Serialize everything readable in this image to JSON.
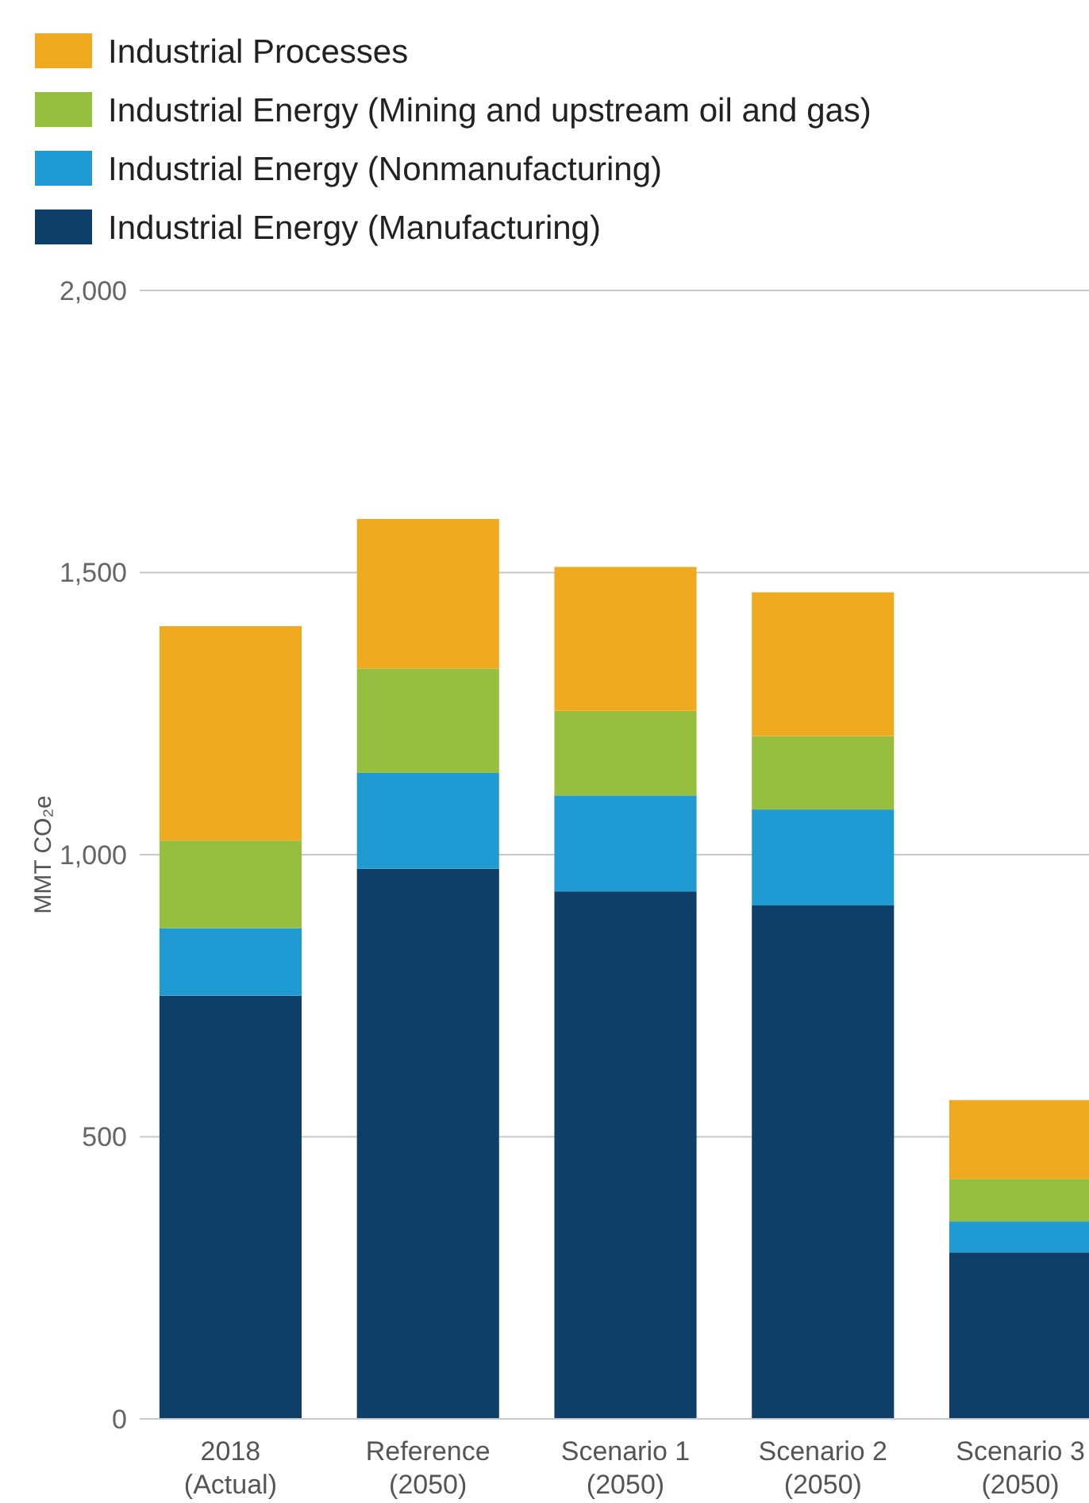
{
  "chart_data": {
    "type": "bar",
    "stacked": true,
    "ylabel": "MMT CO₂e",
    "categories": [
      "2018 (Actual)",
      "Reference (2050)",
      "Scenario 1 (2050)",
      "Scenario 2 (2050)",
      "Scenario 3 (2050)"
    ],
    "series": [
      {
        "name": "Industrial Energy (Manufacturing)",
        "color": "#0e3f68",
        "values": [
          750,
          975,
          935,
          910,
          295
        ]
      },
      {
        "name": "Industrial Energy (Nonmanufacturing)",
        "color": "#1f9bd1",
        "values": [
          120,
          170,
          170,
          170,
          55
        ]
      },
      {
        "name": "Industrial Energy (Mining and upstream oil and gas)",
        "color": "#97bf3f",
        "values": [
          155,
          185,
          150,
          130,
          75
        ]
      },
      {
        "name": "Industrial Processes",
        "color": "#efaa1f",
        "values": [
          380,
          265,
          255,
          255,
          140
        ]
      }
    ],
    "ylim": [
      0,
      2000
    ],
    "yticks": [
      0,
      {
        "value": 500,
        "label": "500"
      },
      {
        "value": 1000,
        "label": "1,000"
      },
      {
        "value": 1500,
        "label": "1,500"
      },
      {
        "value": 2000,
        "label": "2,000"
      }
    ],
    "grid": "y",
    "legend": "top left"
  }
}
